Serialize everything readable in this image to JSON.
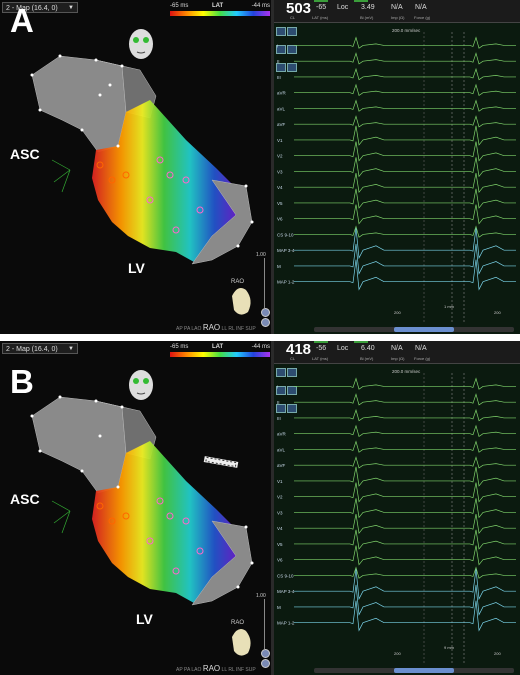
{
  "panels": [
    {
      "letter": "A",
      "map_selector": "2 - Map (16.4, 0)",
      "scale": {
        "title": "LAT",
        "min": "-65 ms",
        "max": "-44 ms"
      },
      "labels": {
        "asc": "ASC",
        "lv": "LV",
        "rao_small": "RAO"
      },
      "view_buttons": [
        "AP",
        "PA",
        "LAO",
        "RAO",
        "LL",
        "RL",
        "INF",
        "SUP"
      ],
      "active_view": "RAO",
      "slider_value": "1.00",
      "header": {
        "cl": "503",
        "cl_label": "CL",
        "lat": "-65",
        "lat_label": "LAT (ms)",
        "loc": "Loc",
        "bi": "3.49",
        "bi_label": "Bi (mV)",
        "imp": "N/A",
        "imp_label": "Imp (Ω)",
        "force": "N/A",
        "force_label": "Force (g)"
      },
      "speed": "200.0 mm/sec",
      "channel_labels": [
        "I",
        "II",
        "III",
        "aVR",
        "aVL",
        "aVF",
        "V1",
        "V2",
        "V3",
        "V4",
        "V5",
        "V6",
        "CS 9-10",
        "MAP 3-4",
        "M",
        "MAP 1-2"
      ],
      "markers": [
        "200",
        "200"
      ],
      "mini_text": "1 mm"
    },
    {
      "letter": "B",
      "map_selector": "2 - Map (16.4, 0)",
      "scale": {
        "title": "LAT",
        "min": "-65 ms",
        "max": "-44 ms"
      },
      "labels": {
        "asc": "ASC",
        "lv": "LV",
        "rao_small": "RAO"
      },
      "view_buttons": [
        "AP",
        "PA",
        "LAO",
        "RAO",
        "LL",
        "RL",
        "INF",
        "SUP"
      ],
      "active_view": "RAO",
      "slider_value": "1.00",
      "header": {
        "cl": "418",
        "cl_label": "CL",
        "lat": "-56",
        "lat_label": "LAT (ms)",
        "loc": "Loc",
        "bi": "6.40",
        "bi_label": "Bi (mV)",
        "imp": "N/A",
        "imp_label": "Imp (Ω)",
        "force": "N/A",
        "force_label": "Force (g)"
      },
      "speed": "200.0 mm/sec",
      "channel_labels": [
        "I",
        "II",
        "III",
        "aVR",
        "aVL",
        "aVF",
        "V1",
        "V2",
        "V3",
        "V4",
        "V5",
        "V6",
        "CS 9-10",
        "MAP 3-4",
        "M",
        "MAP 1-2"
      ],
      "markers": [
        "200",
        "200"
      ],
      "mini_text": "9 mm"
    }
  ],
  "colors": {
    "ecg_green": "#7fd36b",
    "ecg_cyan": "#7ad3e8",
    "map_grey": "#8a8a8a"
  }
}
